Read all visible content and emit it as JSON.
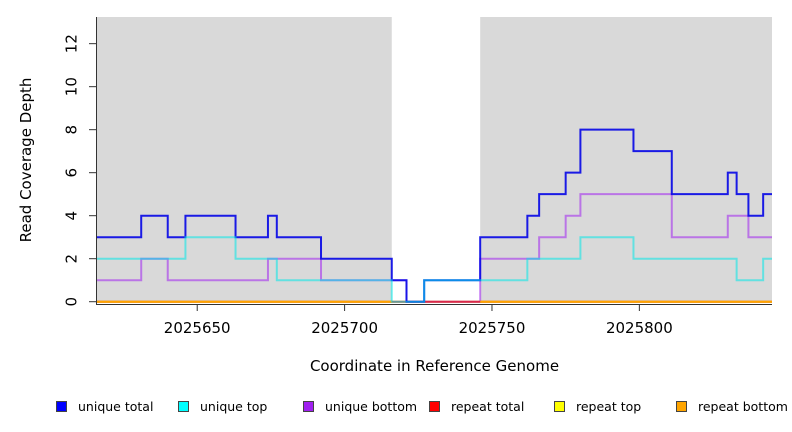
{
  "chart_data": {
    "type": "line",
    "subtype": "step",
    "title": "",
    "xlabel": "Coordinate in Reference Genome",
    "ylabel": "Read Coverage Depth",
    "xlim": [
      2025616,
      2025845
    ],
    "ylim": [
      0,
      13.24
    ],
    "xticks": [
      2025650,
      2025700,
      2025750,
      2025800
    ],
    "yticks": [
      0,
      2,
      4,
      6,
      8,
      10,
      12
    ],
    "grid": false,
    "plot_background": "#d9d9d9",
    "highlight_region": {
      "x0": 2025716,
      "x1": 2025746,
      "color": "#ffffff"
    },
    "legend_position": "bottom",
    "draw_order": [
      "repeat top",
      "unique bottom",
      "repeat total",
      "repeat bottom",
      "unique total",
      "unique top"
    ],
    "series": [
      {
        "name": "unique total",
        "line_color": "rgba(10,10,230,0.92)",
        "legend_color": "#0000ff",
        "segments": [
          [
            2025616,
            3
          ],
          [
            2025631,
            4
          ],
          [
            2025640,
            3
          ],
          [
            2025646,
            4
          ],
          [
            2025663,
            3
          ],
          [
            2025674,
            4
          ],
          [
            2025677,
            3
          ],
          [
            2025692,
            2
          ],
          [
            2025716,
            1
          ],
          [
            2025721,
            0
          ],
          [
            2025727,
            1
          ],
          [
            2025746,
            3
          ],
          [
            2025762,
            4
          ],
          [
            2025766,
            5
          ],
          [
            2025775,
            6
          ],
          [
            2025780,
            8
          ],
          [
            2025798,
            7
          ],
          [
            2025811,
            5
          ],
          [
            2025830,
            6
          ],
          [
            2025833,
            5
          ],
          [
            2025837,
            4
          ],
          [
            2025842,
            5
          ]
        ]
      },
      {
        "name": "unique top",
        "line_color": "rgba(0,232,232,0.55)",
        "legend_color": "#00ffff",
        "segments": [
          [
            2025616,
            2
          ],
          [
            2025646,
            3
          ],
          [
            2025663,
            2
          ],
          [
            2025677,
            1
          ],
          [
            2025716,
            0
          ],
          [
            2025727,
            1
          ],
          [
            2025762,
            2
          ],
          [
            2025780,
            3
          ],
          [
            2025798,
            2
          ],
          [
            2025833,
            1
          ],
          [
            2025842,
            2
          ]
        ]
      },
      {
        "name": "unique bottom",
        "line_color": "rgba(160,32,240,0.55)",
        "legend_color": "#a020f0",
        "segments": [
          [
            2025616,
            1
          ],
          [
            2025631,
            2
          ],
          [
            2025640,
            1
          ],
          [
            2025674,
            2
          ],
          [
            2025692,
            1
          ],
          [
            2025721,
            0
          ],
          [
            2025746,
            2
          ],
          [
            2025766,
            3
          ],
          [
            2025775,
            4
          ],
          [
            2025780,
            5
          ],
          [
            2025811,
            3
          ],
          [
            2025830,
            4
          ],
          [
            2025837,
            3
          ]
        ]
      },
      {
        "name": "repeat total",
        "line_color": "rgba(220,25,65,0.85)",
        "legend_color": "#ff0000",
        "segments": [
          [
            2025616,
            0
          ]
        ]
      },
      {
        "name": "repeat top",
        "line_color": "rgba(240,240,0,0.9)",
        "legend_color": "#ffff00",
        "segments": [
          [
            2025616,
            0
          ]
        ]
      },
      {
        "name": "repeat bottom",
        "line_color": "#ffa500",
        "legend_color": "#ffa500",
        "segments": [
          [
            2025616,
            0
          ]
        ]
      }
    ]
  },
  "axes": {
    "x_title": "Coordinate in Reference Genome",
    "y_title": "Read Coverage Depth",
    "x_tick_labels": [
      "2025650",
      "2025700",
      "2025750",
      "2025800"
    ],
    "y_tick_labels": [
      "0",
      "2",
      "4",
      "6",
      "8",
      "10",
      "12"
    ]
  },
  "legend": {
    "items": [
      {
        "label": "unique total"
      },
      {
        "label": "unique top"
      },
      {
        "label": "unique bottom"
      },
      {
        "label": "repeat total"
      },
      {
        "label": "repeat top"
      },
      {
        "label": "repeat bottom"
      }
    ]
  }
}
